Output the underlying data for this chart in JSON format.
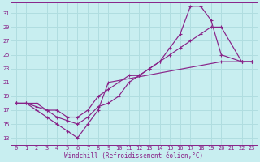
{
  "xlabel": "Windchill (Refroidissement éolien,°C)",
  "background_color": "#c8eef0",
  "grid_color": "#b0dde0",
  "line_color": "#882288",
  "xlim": [
    -0.5,
    23.5
  ],
  "ylim": [
    12,
    32.5
  ],
  "xticks": [
    0,
    1,
    2,
    3,
    4,
    5,
    6,
    7,
    8,
    9,
    10,
    11,
    12,
    13,
    14,
    15,
    16,
    17,
    18,
    19,
    20,
    21,
    22,
    23
  ],
  "yticks": [
    13,
    15,
    17,
    19,
    21,
    23,
    25,
    27,
    29,
    31
  ],
  "line1_x": [
    0,
    1,
    2,
    3,
    4,
    5,
    6,
    7,
    8,
    9,
    10,
    11,
    12,
    13,
    14,
    15,
    16,
    17,
    18,
    19,
    20,
    22,
    23
  ],
  "line1_y": [
    18,
    18,
    17.5,
    17,
    16,
    15.5,
    15,
    16,
    17.5,
    18,
    19,
    21,
    22,
    23,
    24,
    26,
    28,
    32,
    32,
    30,
    25,
    24,
    24
  ],
  "line2_x": [
    0,
    2,
    3,
    4,
    5,
    6,
    7,
    8,
    9,
    10,
    11,
    12,
    13,
    14,
    15,
    16,
    17,
    18,
    19,
    20,
    22,
    23
  ],
  "line2_y": [
    18,
    18,
    17,
    17,
    16,
    16,
    17,
    19,
    20,
    21,
    22,
    22,
    23,
    24,
    25,
    26,
    27,
    28,
    29,
    29,
    24,
    24
  ],
  "line3_x": [
    0,
    1,
    2,
    3,
    4,
    5,
    6,
    7,
    8,
    9,
    20,
    22,
    23
  ],
  "line3_y": [
    18,
    18,
    17,
    16,
    15,
    14,
    13,
    15,
    17,
    21,
    24,
    24,
    24
  ]
}
